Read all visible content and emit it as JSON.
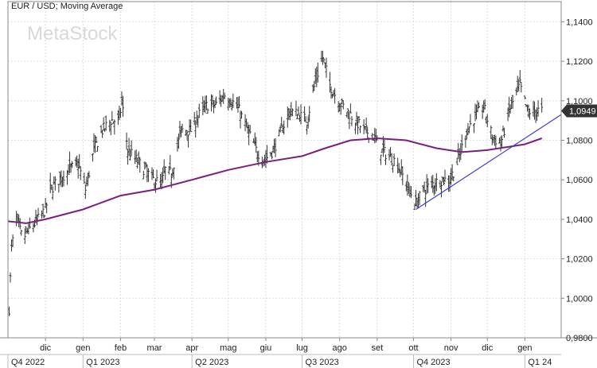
{
  "chart_data": {
    "type": "ohlc",
    "title": "EUR / USD; Moving Average",
    "watermark": "MetaStock",
    "ylim": [
      0.98,
      1.145
    ],
    "y_ticks": [
      "1,1400",
      "1,1200",
      "1,1000",
      "1,0800",
      "1,0600",
      "1,0400",
      "1,0200",
      "1,0000",
      "0,9800"
    ],
    "y_tick_values": [
      1.14,
      1.12,
      1.1,
      1.08,
      1.06,
      1.04,
      1.02,
      1.0,
      0.98
    ],
    "last_price_label": "1,0949",
    "last_price": 1.0949,
    "months": [
      {
        "label": "dic",
        "date": "2022-12-01"
      },
      {
        "label": "gen",
        "date": "2023-01-01"
      },
      {
        "label": "feb",
        "date": "2023-02-01"
      },
      {
        "label": "mar",
        "date": "2023-03-01"
      },
      {
        "label": "apr",
        "date": "2023-04-01"
      },
      {
        "label": "mag",
        "date": "2023-05-01"
      },
      {
        "label": "giu",
        "date": "2023-06-01"
      },
      {
        "label": "lug",
        "date": "2023-07-01"
      },
      {
        "label": "ago",
        "date": "2023-08-01"
      },
      {
        "label": "set",
        "date": "2023-09-01"
      },
      {
        "label": "ott",
        "date": "2023-10-01"
      },
      {
        "label": "nov",
        "date": "2023-11-01"
      },
      {
        "label": "dic",
        "date": "2023-12-01"
      },
      {
        "label": "gen",
        "date": "2024-01-01"
      }
    ],
    "quarters": [
      {
        "label": "Q4 2022",
        "date": "2022-10-31"
      },
      {
        "label": "Q1 2023",
        "date": "2023-01-01"
      },
      {
        "label": "Q2 2023",
        "date": "2023-04-01"
      },
      {
        "label": "Q3 2023",
        "date": "2023-07-01"
      },
      {
        "label": "Q4 2023",
        "date": "2023-10-01"
      },
      {
        "label": "Q1 24",
        "date": "2024-01-01"
      }
    ],
    "price_keypoints": [
      [
        "2022-11-01",
        0.995
      ],
      [
        "2022-11-03",
        1.025
      ],
      [
        "2022-11-07",
        1.04
      ],
      [
        "2022-11-12",
        1.03
      ],
      [
        "2022-11-18",
        1.035
      ],
      [
        "2022-11-25",
        1.04
      ],
      [
        "2022-12-01",
        1.045
      ],
      [
        "2022-12-05",
        1.055
      ],
      [
        "2022-12-12",
        1.06
      ],
      [
        "2022-12-20",
        1.065
      ],
      [
        "2022-12-28",
        1.068
      ],
      [
        "2023-01-03",
        1.055
      ],
      [
        "2023-01-10",
        1.075
      ],
      [
        "2023-01-17",
        1.085
      ],
      [
        "2023-01-24",
        1.09
      ],
      [
        "2023-01-31",
        1.09
      ],
      [
        "2023-02-02",
        1.1
      ],
      [
        "2023-02-07",
        1.075
      ],
      [
        "2023-02-14",
        1.07
      ],
      [
        "2023-02-21",
        1.065
      ],
      [
        "2023-02-28",
        1.06
      ],
      [
        "2023-03-07",
        1.058
      ],
      [
        "2023-03-10",
        1.065
      ],
      [
        "2023-03-15",
        1.063
      ],
      [
        "2023-03-23",
        1.085
      ],
      [
        "2023-03-31",
        1.085
      ],
      [
        "2023-04-07",
        1.093
      ],
      [
        "2023-04-14",
        1.098
      ],
      [
        "2023-04-21",
        1.098
      ],
      [
        "2023-04-28",
        1.103
      ],
      [
        "2023-05-04",
        1.1
      ],
      [
        "2023-05-10",
        1.095
      ],
      [
        "2023-05-17",
        1.085
      ],
      [
        "2023-05-24",
        1.075
      ],
      [
        "2023-05-31",
        1.07
      ],
      [
        "2023-06-07",
        1.075
      ],
      [
        "2023-06-14",
        1.085
      ],
      [
        "2023-06-21",
        1.095
      ],
      [
        "2023-06-28",
        1.093
      ],
      [
        "2023-07-05",
        1.09
      ],
      [
        "2023-07-12",
        1.11
      ],
      [
        "2023-07-18",
        1.122
      ],
      [
        "2023-07-24",
        1.108
      ],
      [
        "2023-07-31",
        1.1
      ],
      [
        "2023-08-07",
        1.095
      ],
      [
        "2023-08-14",
        1.09
      ],
      [
        "2023-08-21",
        1.085
      ],
      [
        "2023-08-28",
        1.083
      ],
      [
        "2023-09-04",
        1.075
      ],
      [
        "2023-09-11",
        1.072
      ],
      [
        "2023-09-18",
        1.068
      ],
      [
        "2023-09-25",
        1.058
      ],
      [
        "2023-10-03",
        1.048
      ],
      [
        "2023-10-10",
        1.055
      ],
      [
        "2023-10-17",
        1.058
      ],
      [
        "2023-10-24",
        1.06
      ],
      [
        "2023-10-31",
        1.06
      ],
      [
        "2023-11-07",
        1.07
      ],
      [
        "2023-11-14",
        1.085
      ],
      [
        "2023-11-21",
        1.092
      ],
      [
        "2023-11-28",
        1.097
      ],
      [
        "2023-12-05",
        1.082
      ],
      [
        "2023-12-12",
        1.078
      ],
      [
        "2023-12-19",
        1.095
      ],
      [
        "2023-12-28",
        1.108
      ],
      [
        "2024-01-03",
        1.095
      ],
      [
        "2024-01-08",
        1.094
      ],
      [
        "2024-01-12",
        1.095
      ],
      [
        "2024-01-15",
        1.0949
      ]
    ],
    "moving_average_keypoints": [
      [
        "2022-10-31",
        1.039
      ],
      [
        "2022-11-15",
        1.038
      ],
      [
        "2022-12-01",
        1.04
      ],
      [
        "2023-01-01",
        1.045
      ],
      [
        "2023-02-01",
        1.052
      ],
      [
        "2023-03-01",
        1.055
      ],
      [
        "2023-04-01",
        1.06
      ],
      [
        "2023-05-01",
        1.065
      ],
      [
        "2023-06-01",
        1.069
      ],
      [
        "2023-07-01",
        1.072
      ],
      [
        "2023-07-20",
        1.076
      ],
      [
        "2023-08-10",
        1.08
      ],
      [
        "2023-09-01",
        1.081
      ],
      [
        "2023-09-25",
        1.08
      ],
      [
        "2023-10-20",
        1.076
      ],
      [
        "2023-11-10",
        1.074
      ],
      [
        "2023-12-01",
        1.075
      ],
      [
        "2024-01-01",
        1.078
      ],
      [
        "2024-01-15",
        1.081
      ]
    ],
    "trendline": [
      [
        "2023-10-03",
        1.045
      ],
      [
        "2024-01-31",
        1.093
      ]
    ]
  }
}
